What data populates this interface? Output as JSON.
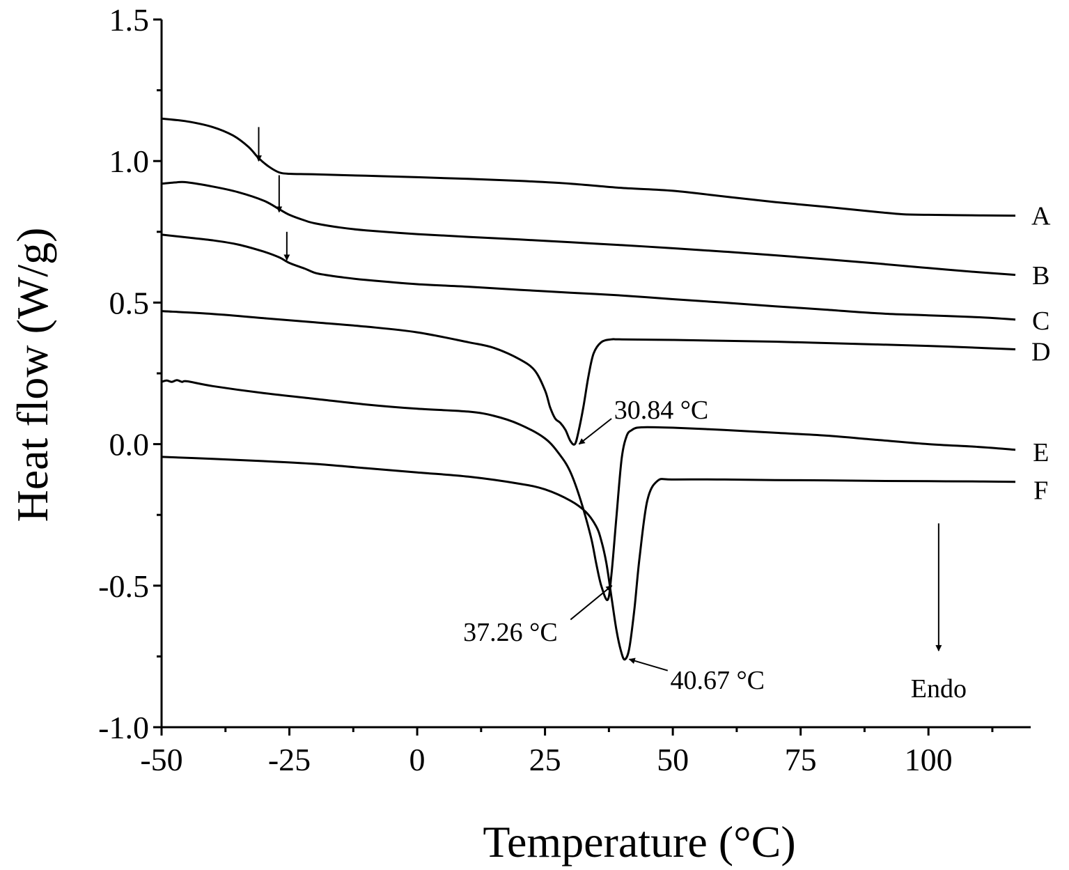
{
  "chart_data": {
    "type": "line",
    "title": "",
    "xlabel": "Temperature (°C)",
    "ylabel": "Heat flow (W/g)",
    "xlim": [
      -50,
      120
    ],
    "ylim": [
      -1.0,
      1.5
    ],
    "xticks": [
      -50,
      -25,
      0,
      25,
      50,
      75,
      100
    ],
    "xtick_labels": [
      "-50",
      "-25",
      "0",
      "25",
      "50",
      "75",
      "100"
    ],
    "yticks": [
      -1.0,
      -0.5,
      0.0,
      0.5,
      1.0,
      1.5
    ],
    "ytick_labels": [
      "-1.0",
      "-0.5",
      "0.0",
      "0.5",
      "1.0",
      "1.5"
    ],
    "grid": false,
    "series": [
      {
        "name": "A",
        "x": [
          -50,
          -45,
          -40,
          -36,
          -33,
          -31,
          -29,
          -27,
          -25,
          -20,
          -10,
          0,
          10,
          20,
          30,
          40,
          50,
          60,
          70,
          80,
          90,
          95,
          100,
          110,
          117
        ],
        "y": [
          1.15,
          1.14,
          1.12,
          1.09,
          1.05,
          1.01,
          0.98,
          0.96,
          0.955,
          0.953,
          0.948,
          0.943,
          0.937,
          0.93,
          0.92,
          0.905,
          0.895,
          0.875,
          0.855,
          0.838,
          0.82,
          0.812,
          0.81,
          0.808,
          0.807
        ]
      },
      {
        "name": "B",
        "x": [
          -50,
          -47,
          -45,
          -40,
          -35,
          -30,
          -27,
          -25,
          -22,
          -20,
          -15,
          -10,
          0,
          10,
          20,
          30,
          40,
          50,
          60,
          70,
          80,
          90,
          100,
          110,
          117
        ],
        "y": [
          0.92,
          0.925,
          0.925,
          0.91,
          0.89,
          0.86,
          0.83,
          0.81,
          0.79,
          0.78,
          0.765,
          0.755,
          0.742,
          0.732,
          0.723,
          0.713,
          0.703,
          0.692,
          0.68,
          0.667,
          0.653,
          0.638,
          0.622,
          0.607,
          0.598
        ]
      },
      {
        "name": "C",
        "x": [
          -50,
          -45,
          -40,
          -35,
          -30,
          -27,
          -25,
          -22,
          -20,
          -18,
          -15,
          -10,
          0,
          10,
          20,
          30,
          40,
          50,
          60,
          70,
          80,
          90,
          100,
          110,
          117
        ],
        "y": [
          0.74,
          0.73,
          0.72,
          0.705,
          0.68,
          0.66,
          0.64,
          0.62,
          0.605,
          0.598,
          0.59,
          0.58,
          0.565,
          0.556,
          0.545,
          0.535,
          0.525,
          0.512,
          0.5,
          0.487,
          0.475,
          0.462,
          0.455,
          0.448,
          0.44
        ]
      },
      {
        "name": "D",
        "x": [
          -50,
          -40,
          -30,
          -20,
          -10,
          0,
          10,
          15,
          20,
          23,
          25,
          26,
          27,
          28,
          29,
          30,
          30.84,
          31.5,
          32.5,
          33.5,
          34.5,
          36,
          38,
          40,
          50,
          60,
          70,
          80,
          90,
          100,
          110,
          117
        ],
        "y": [
          0.47,
          0.46,
          0.445,
          0.43,
          0.415,
          0.395,
          0.36,
          0.34,
          0.3,
          0.26,
          0.19,
          0.13,
          0.09,
          0.075,
          0.05,
          0.01,
          0.0,
          0.04,
          0.13,
          0.24,
          0.32,
          0.36,
          0.37,
          0.37,
          0.368,
          0.365,
          0.362,
          0.357,
          0.352,
          0.347,
          0.34,
          0.335
        ]
      },
      {
        "name": "E",
        "x": [
          -50,
          -49,
          -48,
          -47,
          -46,
          -45,
          -40,
          -30,
          -20,
          -10,
          0,
          10,
          15,
          20,
          25,
          28,
          30,
          32,
          34,
          35,
          36,
          37.26,
          38,
          39,
          40,
          41,
          42,
          43,
          45,
          50,
          60,
          70,
          80,
          90,
          100,
          110,
          117
        ],
        "y": [
          0.22,
          0.225,
          0.22,
          0.226,
          0.22,
          0.222,
          0.205,
          0.18,
          0.16,
          0.14,
          0.125,
          0.115,
          0.1,
          0.07,
          0.02,
          -0.04,
          -0.1,
          -0.2,
          -0.33,
          -0.42,
          -0.5,
          -0.55,
          -0.46,
          -0.25,
          -0.05,
          0.03,
          0.05,
          0.058,
          0.06,
          0.058,
          0.05,
          0.04,
          0.03,
          0.015,
          0.0,
          -0.01,
          -0.02
        ]
      },
      {
        "name": "F",
        "x": [
          -50,
          -40,
          -30,
          -20,
          -10,
          0,
          10,
          20,
          25,
          30,
          33,
          35,
          36,
          37,
          38,
          39,
          40,
          40.67,
          41.5,
          42.5,
          43.5,
          45,
          47,
          50,
          60,
          70,
          80,
          90,
          100,
          110,
          117
        ],
        "y": [
          -0.045,
          -0.052,
          -0.06,
          -0.07,
          -0.085,
          -0.1,
          -0.115,
          -0.14,
          -0.16,
          -0.2,
          -0.24,
          -0.29,
          -0.34,
          -0.42,
          -0.54,
          -0.66,
          -0.74,
          -0.76,
          -0.72,
          -0.58,
          -0.4,
          -0.2,
          -0.13,
          -0.125,
          -0.125,
          -0.127,
          -0.128,
          -0.13,
          -0.131,
          -0.132,
          -0.133
        ]
      }
    ],
    "series_labels": [
      {
        "text": "A",
        "x": 122,
        "y": 0.81
      },
      {
        "text": "B",
        "x": 122,
        "y": 0.6
      },
      {
        "text": "C",
        "x": 122,
        "y": 0.44
      },
      {
        "text": "D",
        "x": 122,
        "y": 0.33
      },
      {
        "text": "E",
        "x": 122,
        "y": -0.025
      },
      {
        "text": "F",
        "x": 122,
        "y": -0.16
      }
    ],
    "transition_arrows": [
      {
        "x": -31,
        "y_from": 1.12,
        "y_to": 1.0
      },
      {
        "x": -27,
        "y_from": 0.95,
        "y_to": 0.82
      },
      {
        "x": -25.5,
        "y_from": 0.75,
        "y_to": 0.65
      }
    ],
    "annotations": [
      {
        "text": "30.84 °C",
        "x": 30.84,
        "y": 0.0,
        "tx": 38.5,
        "ty": 0.125,
        "lx": 38,
        "ly": 0.09
      },
      {
        "text": "37.26 °C",
        "x": 37.26,
        "y": -0.5,
        "tx": 9,
        "ty": -0.66,
        "lx": 30,
        "ly": -0.62
      },
      {
        "text": "40.67 °C",
        "x": 40.67,
        "y": -0.76,
        "tx": 49.5,
        "ty": -0.83,
        "lx": 49,
        "ly": -0.8
      }
    ],
    "endo": {
      "text": "Endo",
      "x": 102,
      "y_from": -0.28,
      "y_to": -0.73,
      "label_y": -0.86
    }
  }
}
